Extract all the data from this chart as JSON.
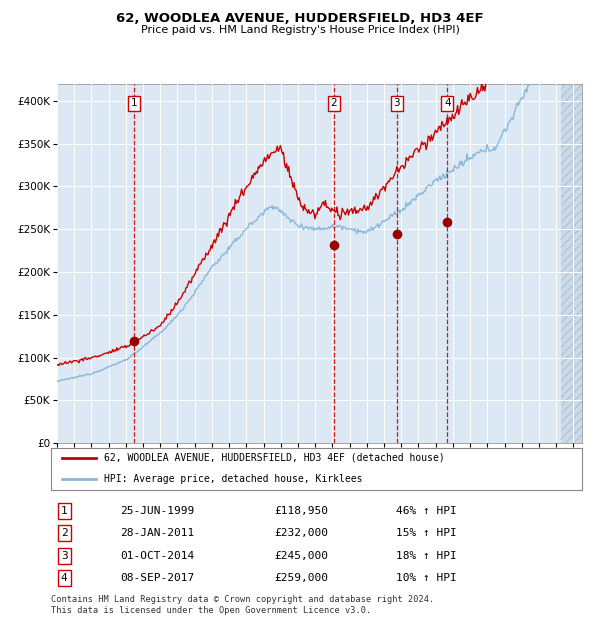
{
  "title": "62, WOODLEA AVENUE, HUDDERSFIELD, HD3 4EF",
  "subtitle": "Price paid vs. HM Land Registry's House Price Index (HPI)",
  "hpi_label": "HPI: Average price, detached house, Kirklees",
  "property_label": "62, WOODLEA AVENUE, HUDDERSFIELD, HD3 4EF (detached house)",
  "footer": "Contains HM Land Registry data © Crown copyright and database right 2024.\nThis data is licensed under the Open Government Licence v3.0.",
  "sale_dates_num": [
    1999.48,
    2011.07,
    2014.75,
    2017.68
  ],
  "sale_prices": [
    118950,
    232000,
    245000,
    259000
  ],
  "sale_labels": [
    "1",
    "2",
    "3",
    "4"
  ],
  "sale_table": [
    [
      "1",
      "25-JUN-1999",
      "£118,950",
      "46% ↑ HPI"
    ],
    [
      "2",
      "28-JAN-2011",
      "£232,000",
      "15% ↑ HPI"
    ],
    [
      "3",
      "01-OCT-2014",
      "£245,000",
      "18% ↑ HPI"
    ],
    [
      "4",
      "08-SEP-2017",
      "£259,000",
      "10% ↑ HPI"
    ]
  ],
  "xmin": 1995.0,
  "xmax": 2025.5,
  "ymin": 0,
  "ymax": 420000,
  "yticks": [
    0,
    50000,
    100000,
    150000,
    200000,
    250000,
    300000,
    350000,
    400000
  ],
  "ytick_labels": [
    "£0",
    "£50K",
    "£100K",
    "£150K",
    "£200K",
    "£250K",
    "£300K",
    "£350K",
    "£400K"
  ],
  "plot_bg": "#dce9f5",
  "hpi_color": "#89b8d8",
  "red_color": "#cc0000",
  "marker_color": "#990000",
  "vline_color": "#cc0000",
  "grid_color": "#ffffff"
}
